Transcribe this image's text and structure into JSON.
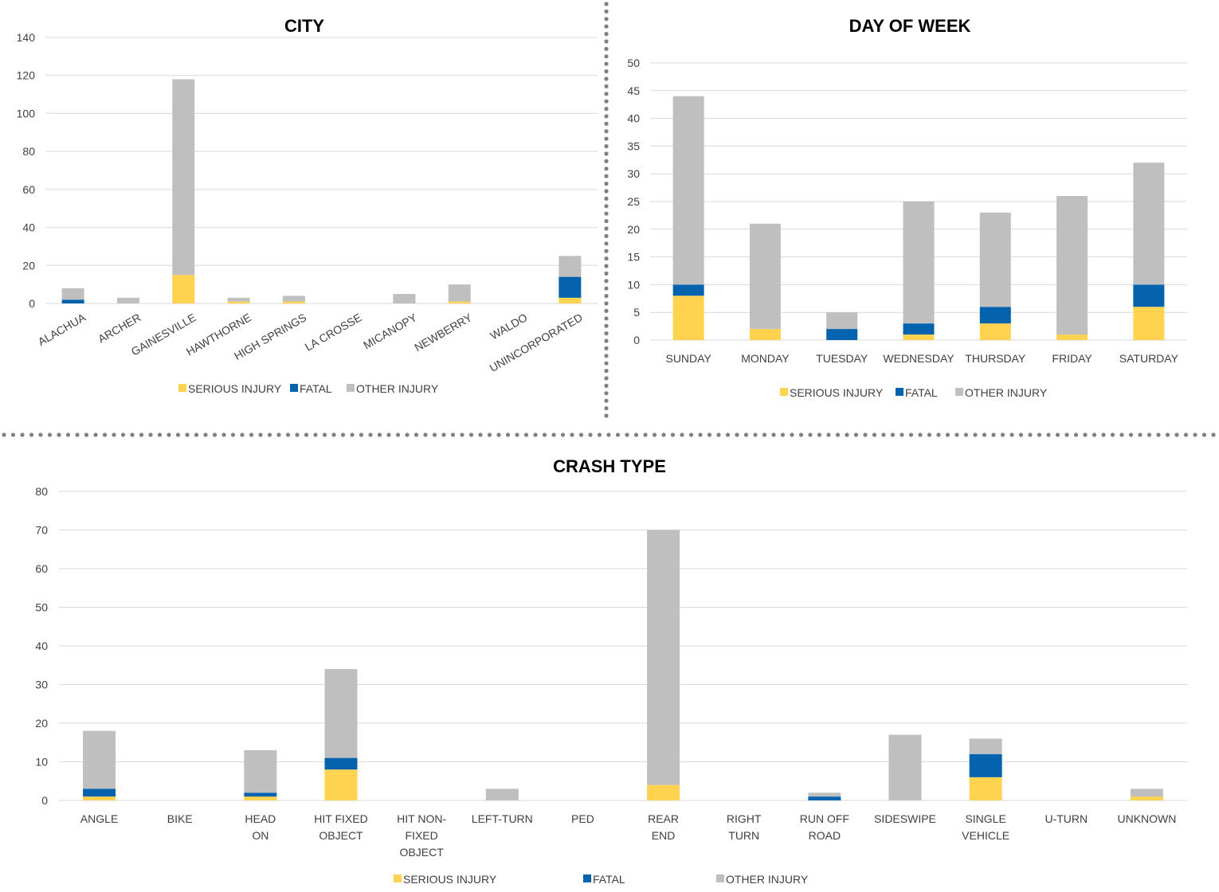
{
  "colors": {
    "serious": "#FFD34F",
    "fatal": "#0563AD",
    "other": "#BFBFBF",
    "divider": "#808080"
  },
  "chart_data": [
    {
      "id": "city",
      "type": "bar",
      "stacked": true,
      "title": "CITY",
      "categories": [
        "ALACHUA",
        "ARCHER",
        "GAINESVILLE",
        "HAWTHORNE",
        "HIGH SPRINGS",
        "LA CROSSE",
        "MICANOPY",
        "NEWBERRY",
        "WALDO",
        "UNINCORPORATED"
      ],
      "series": [
        {
          "name": "SERIOUS INJURY",
          "values": [
            0,
            0,
            15,
            1,
            1,
            0,
            0,
            1,
            0,
            3
          ]
        },
        {
          "name": "FATAL",
          "values": [
            2,
            0,
            0,
            0,
            0,
            0,
            0,
            0,
            0,
            11
          ]
        },
        {
          "name": "OTHER INJURY",
          "values": [
            6,
            3,
            103,
            2,
            3,
            0,
            5,
            9,
            0,
            11
          ]
        }
      ],
      "ylim": [
        0,
        140
      ],
      "yticks": [
        0,
        20,
        40,
        60,
        80,
        100,
        120,
        140
      ],
      "grid": true,
      "legend": "bottom"
    },
    {
      "id": "day",
      "type": "bar",
      "stacked": true,
      "title": "DAY OF WEEK",
      "categories": [
        "SUNDAY",
        "MONDAY",
        "TUESDAY",
        "WEDNESDAY",
        "THURSDAY",
        "FRIDAY",
        "SATURDAY"
      ],
      "series": [
        {
          "name": "SERIOUS INJURY",
          "values": [
            8,
            2,
            0,
            1,
            3,
            1,
            6
          ]
        },
        {
          "name": "FATAL",
          "values": [
            2,
            0,
            2,
            2,
            3,
            0,
            4
          ]
        },
        {
          "name": "OTHER INJURY",
          "values": [
            34,
            19,
            3,
            22,
            17,
            25,
            22
          ]
        }
      ],
      "ylim": [
        0,
        50
      ],
      "yticks": [
        0,
        5,
        10,
        15,
        20,
        25,
        30,
        35,
        40,
        45,
        50
      ],
      "grid": true,
      "legend": "bottom"
    },
    {
      "id": "crash",
      "type": "bar",
      "stacked": true,
      "title": "CRASH TYPE",
      "categories": [
        "ANGLE",
        "BIKE",
        "HEAD ON",
        "HIT FIXED OBJECT",
        "HIT NON-FIXED OBJECT",
        "LEFT-TURN",
        "PED",
        "REAR END",
        "RIGHT TURN",
        "RUN OFF ROAD",
        "SIDESWIPE",
        "SINGLE VEHICLE",
        "U-TURN",
        "UNKNOWN"
      ],
      "category_lines": [
        [
          "ANGLE"
        ],
        [
          "BIKE"
        ],
        [
          "HEAD",
          "ON"
        ],
        [
          "HIT FIXED",
          "OBJECT"
        ],
        [
          "HIT NON-",
          "FIXED",
          "OBJECT"
        ],
        [
          "LEFT-TURN"
        ],
        [
          "PED"
        ],
        [
          "REAR",
          "END"
        ],
        [
          "RIGHT",
          "TURN"
        ],
        [
          "RUN OFF",
          "ROAD"
        ],
        [
          "SIDESWIPE"
        ],
        [
          "SINGLE",
          "VEHICLE"
        ],
        [
          "U-TURN"
        ],
        [
          "UNKNOWN"
        ]
      ],
      "series": [
        {
          "name": "SERIOUS INJURY",
          "values": [
            1,
            0,
            1,
            8,
            0,
            0,
            0,
            4,
            0,
            0,
            0,
            6,
            0,
            1
          ]
        },
        {
          "name": "FATAL",
          "values": [
            2,
            0,
            1,
            3,
            0,
            0,
            0,
            0,
            0,
            1,
            0,
            6,
            0,
            0
          ]
        },
        {
          "name": "OTHER INJURY",
          "values": [
            15,
            0,
            11,
            23,
            0,
            3,
            0,
            66,
            0,
            1,
            17,
            4,
            0,
            2
          ]
        }
      ],
      "ylim": [
        0,
        80
      ],
      "yticks": [
        0,
        10,
        20,
        30,
        40,
        50,
        60,
        70,
        80
      ],
      "grid": true,
      "legend": "bottom"
    }
  ]
}
